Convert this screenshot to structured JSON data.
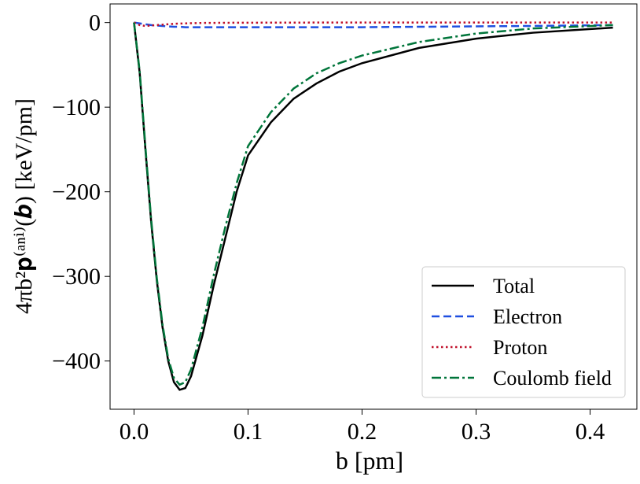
{
  "chart_data": {
    "type": "line",
    "x_label": "b [pm]",
    "y_label": "4πb²𝐩⁽ᵃⁿⁱ⁾(𝒃) [keV/pm]",
    "x": [
      0,
      0.005,
      0.01,
      0.015,
      0.02,
      0.025,
      0.03,
      0.035,
      0.04,
      0.045,
      0.05,
      0.06,
      0.07,
      0.08,
      0.09,
      0.1,
      0.12,
      0.14,
      0.16,
      0.18,
      0.2,
      0.25,
      0.3,
      0.35,
      0.42
    ],
    "series": [
      {
        "name": "Total",
        "color": "#000000",
        "linestyle": "solid",
        "values": [
          0,
          -60,
          -150,
          -235,
          -305,
          -360,
          -400,
          -425,
          -434,
          -432,
          -418,
          -370,
          -310,
          -255,
          -200,
          -157,
          -118,
          -90,
          -72,
          -58,
          -48,
          -30,
          -19,
          -12,
          -6
        ]
      },
      {
        "name": "Electron",
        "color": "#1f4fe0",
        "linestyle": "dashed",
        "values": [
          0,
          -1,
          -2,
          -3,
          -3.5,
          -4,
          -4.5,
          -5,
          -5,
          -5.5,
          -5.5,
          -5.5,
          -5.5,
          -5.5,
          -5.5,
          -5.5,
          -5.5,
          -5.5,
          -5.5,
          -5.5,
          -5.5,
          -5,
          -4.5,
          -4,
          -3
        ]
      },
      {
        "name": "Proton",
        "color": "#c0102a",
        "linestyle": "dotted",
        "values": [
          0,
          -3,
          -4,
          -3.5,
          -3,
          -2.5,
          -2,
          -1.5,
          -1.2,
          -1,
          -0.8,
          -0.5,
          -0.4,
          -0.3,
          -0.2,
          -0.2,
          -0.1,
          -0.1,
          0,
          0,
          0,
          0,
          0,
          0,
          0
        ]
      },
      {
        "name": "Coulomb field",
        "color": "#00753a",
        "linestyle": "dashdot",
        "values": [
          0,
          -58,
          -147,
          -232,
          -302,
          -357,
          -397,
          -420,
          -428,
          -425,
          -410,
          -360,
          -298,
          -242,
          -190,
          -146,
          -106,
          -78,
          -60,
          -48,
          -39,
          -23,
          -13,
          -7,
          -3
        ]
      }
    ],
    "xlim": [
      -0.021,
      0.441
    ],
    "ylim": [
      -457,
      22
    ],
    "xticks": [
      {
        "value": 0,
        "label": "0.0"
      },
      0.1,
      0.2,
      0.3,
      0.4
    ],
    "yticks": [
      {
        "value": -400,
        "label": "−400"
      },
      {
        "value": -300,
        "label": "−300"
      },
      {
        "value": -200,
        "label": "−200"
      },
      {
        "value": -100,
        "label": "−100"
      },
      0
    ],
    "legend": "lower right"
  }
}
